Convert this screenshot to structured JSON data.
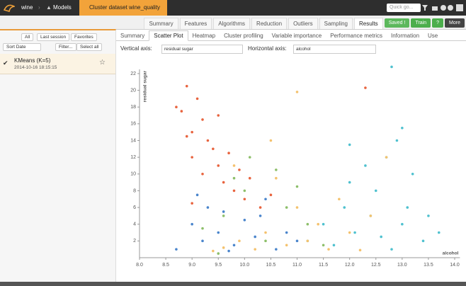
{
  "header": {
    "breadcrumbs": [
      "wine",
      "Models",
      "Cluster dataset wine_quality"
    ],
    "search_placeholder": "Quick go..."
  },
  "tabs": {
    "items": [
      "Summary",
      "Features",
      "Algorithms",
      "Reduction",
      "Outliers",
      "Sampling",
      "Results"
    ],
    "active": 6
  },
  "actions": [
    "Saved !",
    "Train",
    "?",
    "More"
  ],
  "sidebar": {
    "filters": [
      "All",
      "Last session",
      "Favorites"
    ],
    "sort": "Sort Date",
    "tools": [
      "Filter...",
      "Select all"
    ],
    "models": [
      {
        "name": "KMeans (K=5)",
        "date": "2014-10-16 18:15:15"
      }
    ]
  },
  "subtabs": {
    "items": [
      "Summary",
      "Scatter Plot",
      "Heatmap",
      "Cluster profiling",
      "Variable importance",
      "Performance metrics",
      "Information",
      "Use"
    ],
    "active": 1
  },
  "axis_controls": {
    "vertical_label": "Vertical axis:",
    "vertical_value": "residual sugar",
    "horizontal_label": "Horizontal axis:",
    "horizontal_value": "alcohol"
  },
  "chart_data": {
    "type": "scatter",
    "y_label": "residual sugar",
    "x_label": "alcohol",
    "xlim": [
      8,
      14.1
    ],
    "ylim": [
      0,
      22.5
    ],
    "xticks": [
      {
        "value": 8,
        "label": "8.0"
      },
      8.5,
      {
        "value": 9,
        "label": "9.0"
      },
      9.5,
      {
        "value": 10,
        "label": "10.0"
      },
      10.5,
      {
        "value": 11,
        "label": "11.0"
      },
      11.5,
      {
        "value": 12,
        "label": "12.0"
      },
      12.5,
      {
        "value": 13,
        "label": "13.0"
      },
      13.5,
      {
        "value": 14,
        "label": "14.0"
      }
    ],
    "yticks": [
      2,
      4,
      6,
      8,
      10,
      12,
      14,
      16,
      18,
      20,
      22
    ],
    "series": [
      {
        "color": "#e8643f",
        "x": [
          8.7,
          8.8,
          8.9,
          9.0,
          9.0,
          9.1,
          9.2,
          9.2,
          9.3,
          9.4,
          9.5,
          9.5,
          9.6,
          9.7,
          9.8,
          9.9,
          10.0,
          10.1,
          10.3,
          10.5,
          12.3,
          9.0,
          8.9
        ],
        "values": [
          18,
          17.5,
          20.5,
          15,
          12,
          19,
          16.5,
          10,
          14,
          13,
          11,
          17,
          9,
          12.5,
          8,
          10.5,
          7,
          9.5,
          6,
          7.5,
          20.3,
          6.5,
          14.5
        ]
      },
      {
        "color": "#4fc1cf",
        "x": [
          11.2,
          11.5,
          11.7,
          11.9,
          12.0,
          12.1,
          12.3,
          12.4,
          12.5,
          12.6,
          12.7,
          12.8,
          12.9,
          13.0,
          13.1,
          13.2,
          13.4,
          13.5,
          13.7,
          13.0,
          12.8,
          12.0
        ],
        "values": [
          2,
          4,
          1.5,
          6,
          9,
          3,
          11,
          5,
          8,
          2.5,
          12,
          1,
          14,
          4,
          6,
          10,
          2,
          5,
          3,
          15.5,
          22.8,
          13.5
        ]
      },
      {
        "color": "#4a85cc",
        "x": [
          8.7,
          9.0,
          9.2,
          9.3,
          9.5,
          9.6,
          9.8,
          10.0,
          10.2,
          10.4,
          10.6,
          10.8,
          11.0,
          9.1,
          9.7,
          10.3
        ],
        "values": [
          1,
          4,
          2,
          6,
          3,
          5.5,
          1.5,
          4.5,
          2.5,
          7,
          1,
          3,
          2,
          7.5,
          0.8,
          5
        ]
      },
      {
        "color": "#f4c26e",
        "x": [
          9.4,
          9.6,
          9.9,
          10.2,
          10.4,
          10.6,
          10.8,
          11.0,
          11.2,
          11.4,
          11.6,
          11.8,
          12.0,
          12.2,
          12.4,
          11.0,
          10.5,
          12.7,
          9.8
        ],
        "values": [
          0.8,
          1.2,
          2,
          1,
          3,
          9.5,
          1.5,
          6,
          2,
          4,
          1,
          7,
          3,
          0.9,
          5,
          19.8,
          14,
          12,
          11
        ]
      },
      {
        "color": "#8dbf6a",
        "x": [
          9.2,
          9.6,
          10.0,
          10.4,
          10.8,
          11.2,
          9.8,
          10.6,
          11.5,
          10.1,
          9.5,
          11.0
        ],
        "values": [
          3.5,
          5,
          8,
          2,
          6,
          4,
          9.5,
          10.5,
          1.5,
          12,
          0.5,
          8.5
        ]
      }
    ]
  }
}
